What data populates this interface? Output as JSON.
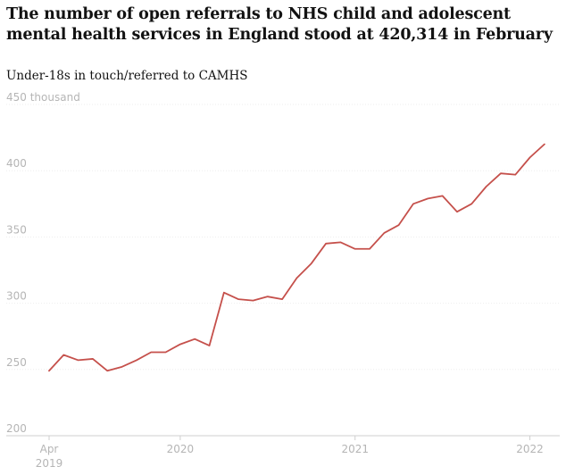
{
  "title": "The number of open referrals to NHS child and adolescent mental health services in England stood at 420,314 in February",
  "subtitle": "Under-18s in touch/referred to CAMHS",
  "colors": {
    "line": "#c5504b",
    "text": "#121212",
    "axis_text": "#b5b5b5"
  },
  "chart_data": {
    "type": "line",
    "title": "The number of open referrals to NHS child and adolescent mental health services in England stood at 420,314 in February",
    "subtitle": "Under-18s in touch/referred to CAMHS",
    "ylabel": "",
    "xlabel": "",
    "unit": "thousand",
    "ylim": [
      200,
      450
    ],
    "yticks": [
      200,
      250,
      300,
      350,
      400,
      450
    ],
    "ytick_labels": [
      "200",
      "250",
      "300",
      "350",
      "400",
      "450 thousand"
    ],
    "xlim": [
      "2019-03",
      "2022-03"
    ],
    "xticks": [
      {
        "date": "2019-04",
        "label": "Apr",
        "label2": "2019"
      },
      {
        "date": "2020-01",
        "label": "2020",
        "label2": ""
      },
      {
        "date": "2021-01",
        "label": "2021",
        "label2": ""
      },
      {
        "date": "2022-01",
        "label": "2022",
        "label2": ""
      }
    ],
    "grid": true,
    "legend": "none",
    "series": [
      {
        "x": [
          "2019-04",
          "2019-05",
          "2019-06",
          "2019-07",
          "2019-08",
          "2019-09",
          "2019-10",
          "2019-11",
          "2019-12",
          "2020-01",
          "2020-02",
          "2020-03",
          "2020-04",
          "2020-05",
          "2020-06",
          "2020-07",
          "2020-08",
          "2020-09",
          "2020-10",
          "2020-11",
          "2020-12",
          "2021-01",
          "2021-02",
          "2021-03",
          "2021-04",
          "2021-05",
          "2021-06",
          "2021-07",
          "2021-08",
          "2021-09",
          "2021-10",
          "2021-11",
          "2021-12",
          "2022-01",
          "2022-02"
        ],
        "values": [
          249,
          261,
          257,
          258,
          249,
          252,
          257,
          263,
          263,
          269,
          273,
          268,
          308,
          303,
          302,
          305,
          303,
          319,
          330,
          345,
          346,
          341,
          341,
          353,
          359,
          375,
          379,
          381,
          369,
          375,
          388,
          398,
          397,
          410,
          420
        ]
      }
    ]
  }
}
